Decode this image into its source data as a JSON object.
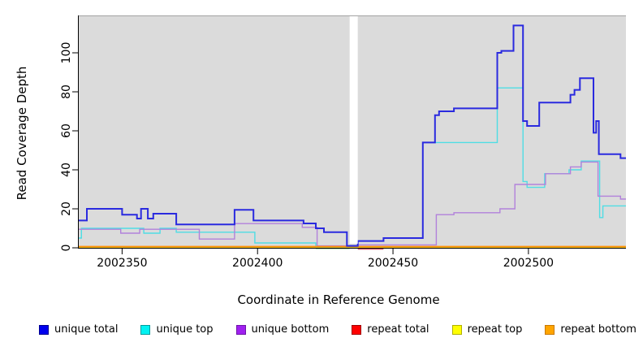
{
  "chart_data": {
    "type": "line",
    "title": "",
    "xlabel": "Coordinate in Reference Genome",
    "ylabel": "Read Coverage Depth",
    "xlim": [
      2002334,
      2002536
    ],
    "ylim": [
      0,
      119
    ],
    "x_ticks": [
      2002350,
      2002400,
      2002450,
      2002500
    ],
    "y_ticks": [
      0,
      20,
      40,
      60,
      80,
      100
    ],
    "grid": false,
    "panel_bg": "#DBDBDB",
    "panel_top_edge": "#A3A3A3",
    "background": "#FFFFFF",
    "legend_position": "bottom",
    "gap": {
      "x_start": 2002434,
      "x_end": 2002437
    },
    "series": [
      {
        "name": "repeat total",
        "color": "#E03040",
        "width": 1.4,
        "points": [
          [
            2002334,
            0
          ],
          [
            2002536,
            0
          ]
        ]
      },
      {
        "name": "repeat top",
        "color": "#F0E020",
        "width": 1.4,
        "points": [
          [
            2002334,
            0
          ],
          [
            2002536,
            0
          ]
        ]
      },
      {
        "name": "unique top",
        "color": "#4FDDE4",
        "width": 1.4,
        "points": [
          [
            2002334,
            5
          ],
          [
            2002335,
            10
          ],
          [
            2002358,
            7.5
          ],
          [
            2002364,
            10
          ],
          [
            2002370,
            8
          ],
          [
            2002399,
            2.5
          ],
          [
            2002421.5,
            0.5
          ],
          [
            2002434,
            0.5
          ],
          [
            2002437,
            3.5
          ],
          [
            2002446.5,
            5
          ],
          [
            2002461,
            54
          ],
          [
            2002488.5,
            82
          ],
          [
            2002498,
            34
          ],
          [
            2002499.5,
            31
          ],
          [
            2002506,
            38
          ],
          [
            2002515,
            40
          ],
          [
            2002519.5,
            44.5
          ],
          [
            2002526.3,
            15.5
          ],
          [
            2002527.5,
            21.5
          ],
          [
            2002536,
            21.5
          ]
        ]
      },
      {
        "name": "unique bottom",
        "color": "#B281DB",
        "width": 1.4,
        "points": [
          [
            2002334,
            9.5
          ],
          [
            2002349.5,
            7.5
          ],
          [
            2002356.5,
            9.5
          ],
          [
            2002378.5,
            4.5
          ],
          [
            2002391.5,
            12.4
          ],
          [
            2002416.5,
            10.5
          ],
          [
            2002422,
            1
          ],
          [
            2002434,
            1
          ],
          [
            2002437,
            1.5
          ],
          [
            2002466,
            17
          ],
          [
            2002472.5,
            18
          ],
          [
            2002489.5,
            20
          ],
          [
            2002495,
            32.5
          ],
          [
            2002506.3,
            38
          ],
          [
            2002515.5,
            41.5
          ],
          [
            2002519.5,
            44
          ],
          [
            2002525.7,
            26.5
          ],
          [
            2002534,
            25
          ],
          [
            2002536,
            25
          ]
        ]
      },
      {
        "name": "repeat bottom",
        "color": "#FF8C05",
        "width": 1.8,
        "points": [
          [
            2002334,
            0
          ],
          [
            2002536,
            0
          ]
        ]
      },
      {
        "name": "unique total",
        "color": "#2A2ADF",
        "width": 2,
        "points": [
          [
            2002334,
            14
          ],
          [
            2002337,
            20
          ],
          [
            2002350,
            17
          ],
          [
            2002355.5,
            15
          ],
          [
            2002357,
            20
          ],
          [
            2002359.5,
            15
          ],
          [
            2002361.5,
            17.5
          ],
          [
            2002370,
            12
          ],
          [
            2002391.5,
            19.5
          ],
          [
            2002398.5,
            14
          ],
          [
            2002417,
            12.5
          ],
          [
            2002421.5,
            10
          ],
          [
            2002424.5,
            8
          ],
          [
            2002433,
            1
          ],
          [
            2002437,
            3.5
          ],
          [
            2002446.5,
            5
          ],
          [
            2002461,
            54
          ],
          [
            2002465.5,
            68
          ],
          [
            2002467,
            70
          ],
          [
            2002472.5,
            71.5
          ],
          [
            2002488.5,
            100
          ],
          [
            2002490,
            101
          ],
          [
            2002494.5,
            114
          ],
          [
            2002498,
            65
          ],
          [
            2002499.5,
            62.5
          ],
          [
            2002504,
            74.5
          ],
          [
            2002515.5,
            78.5
          ],
          [
            2002517,
            81
          ],
          [
            2002519,
            87
          ],
          [
            2002524,
            59
          ],
          [
            2002525,
            65
          ],
          [
            2002526,
            48
          ],
          [
            2002534,
            46
          ],
          [
            2002536,
            46
          ]
        ]
      }
    ],
    "overlap_artifacts": [
      {
        "label": "green blend sliver before gap",
        "color": "#84C87E",
        "x_start": 2002421.5,
        "x_end": 2002434,
        "y": 0
      },
      {
        "label": "crimson blend sliver after gap",
        "color": "#D05A6E",
        "x_start": 2002437,
        "x_end": 2002446.5,
        "y": 0
      }
    ]
  },
  "legend": {
    "items": [
      {
        "label": "unique total",
        "fill": "#0000EE",
        "border": "#000090"
      },
      {
        "label": "unique top",
        "fill": "#00F2F2",
        "border": "#009C9C"
      },
      {
        "label": "unique bottom",
        "fill": "#A020F0",
        "border": "#6E14A8"
      },
      {
        "label": "repeat total",
        "fill": "#FF0000",
        "border": "#A00000"
      },
      {
        "label": "repeat top",
        "fill": "#FFFF00",
        "border": "#B0B000"
      },
      {
        "label": "repeat bottom",
        "fill": "#FFA500",
        "border": "#C87800"
      }
    ]
  }
}
